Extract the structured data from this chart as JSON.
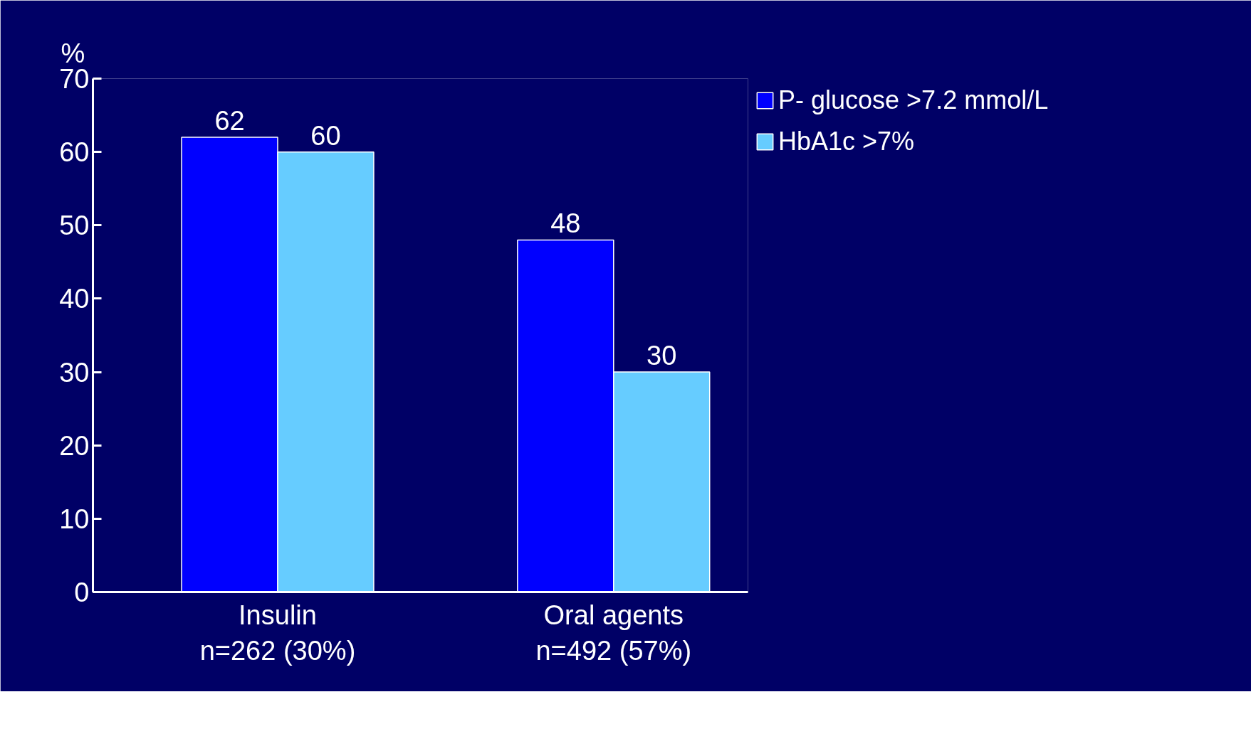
{
  "chart_data": {
    "type": "bar",
    "ylabel": "%",
    "categories": [
      "Insulin\nn=262 (30%)",
      "Oral agents\nn=492 (57%)"
    ],
    "series": [
      {
        "name": "P- glucose >7.2 mmol/L",
        "color": "#0000ff",
        "values": [
          62,
          48
        ]
      },
      {
        "name": "HbA1c >7%",
        "color": "#66ccff",
        "values": [
          60,
          30
        ]
      }
    ],
    "ylim": [
      0,
      70
    ],
    "yticks": [
      0,
      10,
      20,
      30,
      40,
      50,
      60,
      70
    ],
    "data_labels": true,
    "grid": false,
    "legend": "top right"
  }
}
